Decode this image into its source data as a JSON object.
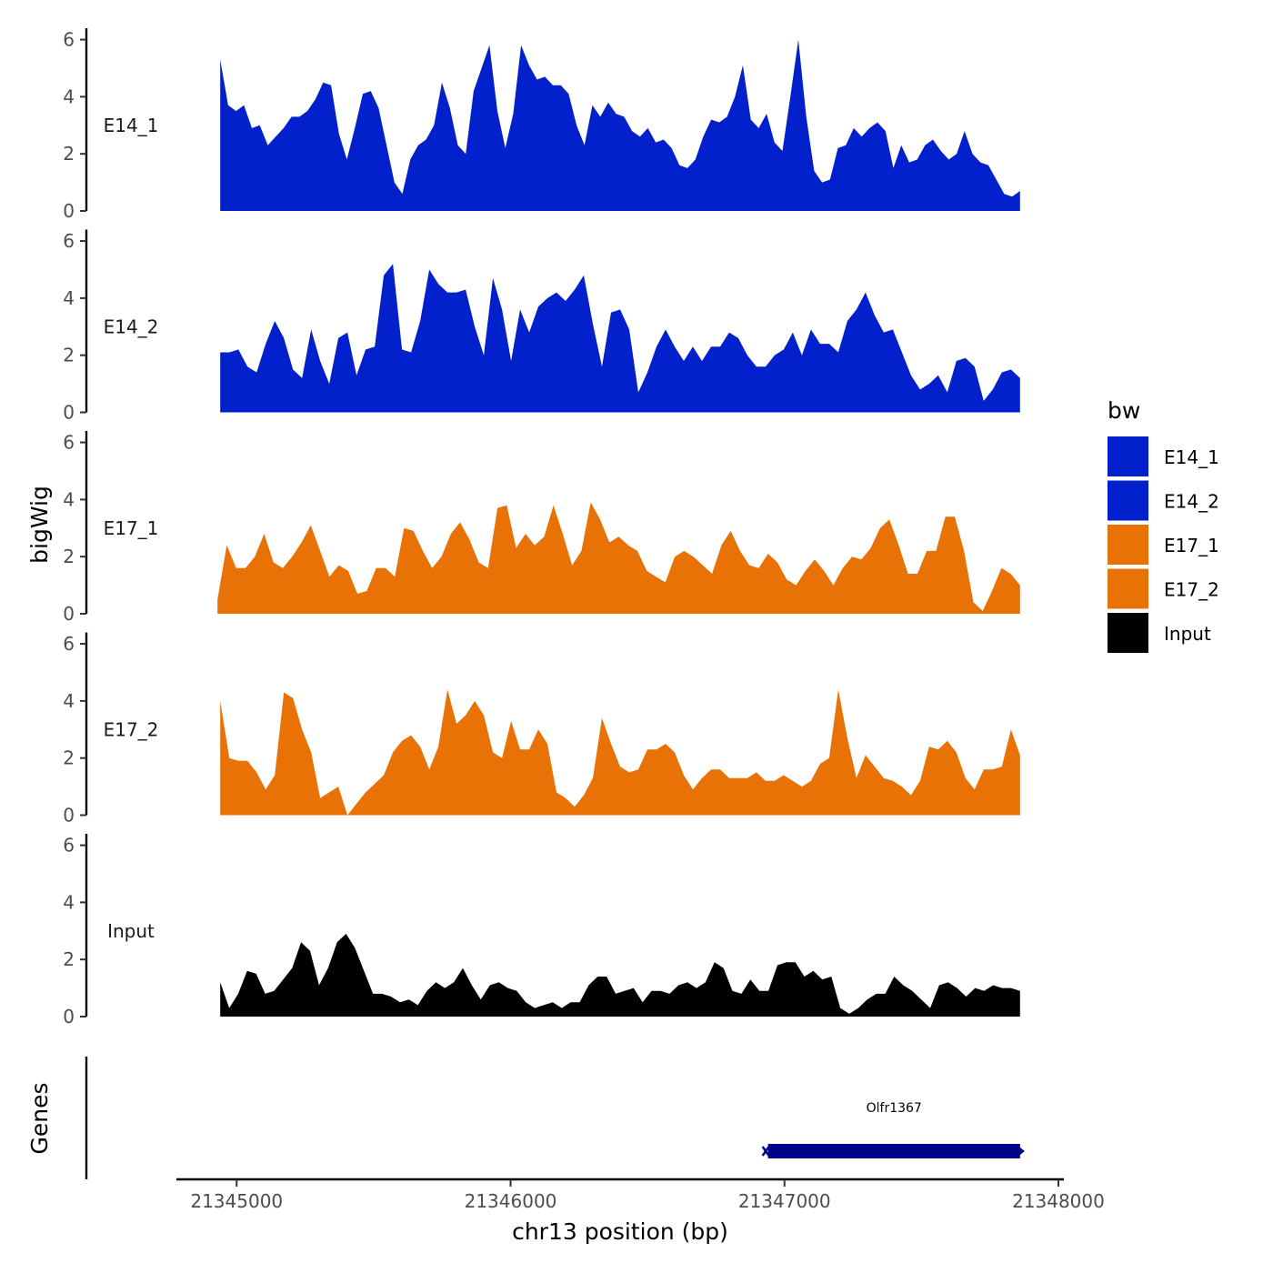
{
  "chart_data": {
    "type": "area",
    "ylabel": "bigWig",
    "xlabel": "chr13 position (bp)",
    "gene_track_label": "Genes",
    "ylim": [
      0,
      6.4
    ],
    "y_ticks": [
      0,
      2,
      4,
      6
    ],
    "xlim": [
      21344780,
      21348020
    ],
    "x_ticks": [
      21345000,
      21346000,
      21347000,
      21348000
    ],
    "x_tick_labels": [
      "21345000",
      "21346000",
      "21347000",
      "21348000"
    ],
    "legend": {
      "title": "bw",
      "entries": [
        {
          "label": "E14_1",
          "color": "#0220CC"
        },
        {
          "label": "E14_2",
          "color": "#0220CC"
        },
        {
          "label": "E17_1",
          "color": "#E87206"
        },
        {
          "label": "E17_2",
          "color": "#E87206"
        },
        {
          "label": "Input",
          "color": "#000000"
        }
      ]
    },
    "series": [
      {
        "name": "E14_1",
        "color": "#0220CC",
        "x_start": 21344940,
        "x_end": 21347860,
        "values": [
          5.3,
          3.7,
          3.5,
          3.7,
          2.9,
          3.0,
          2.3,
          2.6,
          2.9,
          3.3,
          3.3,
          3.5,
          3.9,
          4.5,
          4.4,
          2.7,
          1.8,
          2.9,
          4.1,
          4.2,
          3.6,
          2.3,
          1.0,
          0.6,
          1.8,
          2.3,
          2.5,
          3.0,
          4.5,
          3.6,
          2.3,
          2.0,
          4.2,
          5.0,
          5.8,
          3.5,
          2.2,
          3.4,
          5.8,
          5.1,
          4.6,
          4.7,
          4.4,
          4.4,
          4.1,
          3.0,
          2.3,
          3.7,
          3.3,
          3.8,
          3.4,
          3.3,
          2.8,
          2.6,
          2.9,
          2.4,
          2.5,
          2.2,
          1.6,
          1.5,
          1.8,
          2.6,
          3.2,
          3.1,
          3.3,
          4.0,
          5.1,
          3.2,
          2.9,
          3.4,
          2.4,
          2.1,
          4.0,
          6.0,
          3.3,
          1.4,
          1.0,
          1.1,
          2.2,
          2.3,
          2.9,
          2.6,
          2.9,
          3.1,
          2.8,
          1.5,
          2.3,
          1.7,
          1.8,
          2.3,
          2.5,
          2.1,
          1.8,
          2.0,
          2.8,
          2.0,
          1.7,
          1.6,
          1.1,
          0.6,
          0.5,
          0.7
        ]
      },
      {
        "name": "E14_2",
        "color": "#0220CC",
        "x_start": 21344940,
        "x_end": 21347860,
        "values": [
          2.1,
          2.1,
          2.2,
          1.6,
          1.4,
          2.4,
          3.2,
          2.6,
          1.5,
          1.2,
          2.9,
          1.8,
          1.0,
          2.6,
          2.8,
          1.3,
          2.2,
          2.3,
          4.8,
          5.2,
          2.2,
          2.1,
          3.2,
          5.0,
          4.5,
          4.2,
          4.2,
          4.3,
          3.0,
          2.0,
          4.7,
          3.6,
          1.8,
          3.6,
          2.8,
          3.7,
          4.0,
          4.2,
          3.9,
          4.3,
          4.8,
          3.1,
          1.6,
          3.5,
          3.6,
          2.9,
          0.7,
          1.4,
          2.3,
          2.9,
          2.3,
          1.8,
          2.3,
          1.8,
          2.3,
          2.3,
          2.8,
          2.6,
          2.0,
          1.6,
          1.6,
          2.0,
          2.2,
          2.8,
          2.0,
          2.9,
          2.4,
          2.4,
          2.1,
          3.2,
          3.6,
          4.2,
          3.4,
          2.8,
          2.9,
          2.1,
          1.3,
          0.8,
          1.0,
          1.3,
          0.7,
          1.8,
          1.9,
          1.6,
          0.4,
          0.8,
          1.4,
          1.5,
          1.2
        ]
      },
      {
        "name": "E17_1",
        "color": "#E87206",
        "x_start": 21344930,
        "x_end": 21347860,
        "values": [
          0.5,
          2.4,
          1.6,
          1.6,
          2.0,
          2.8,
          1.8,
          1.6,
          2.0,
          2.5,
          3.1,
          2.2,
          1.3,
          1.7,
          1.5,
          0.7,
          0.8,
          1.6,
          1.6,
          1.3,
          3.0,
          2.9,
          2.2,
          1.6,
          2.0,
          2.8,
          3.2,
          2.6,
          1.8,
          1.6,
          3.7,
          3.8,
          2.3,
          2.8,
          2.4,
          2.7,
          3.8,
          2.8,
          1.7,
          2.2,
          3.9,
          3.3,
          2.5,
          2.7,
          2.4,
          2.2,
          1.5,
          1.3,
          1.1,
          2.0,
          2.2,
          2.0,
          1.7,
          1.4,
          2.4,
          2.9,
          2.2,
          1.7,
          1.6,
          2.1,
          1.8,
          1.2,
          1.0,
          1.5,
          1.9,
          1.5,
          1.0,
          1.6,
          2.0,
          1.9,
          2.3,
          3.0,
          3.3,
          2.4,
          1.4,
          1.4,
          2.2,
          2.2,
          3.4,
          3.4,
          2.2,
          0.4,
          0.1,
          0.8,
          1.6,
          1.4,
          1.0
        ]
      },
      {
        "name": "E17_2",
        "color": "#E87206",
        "x_start": 21344940,
        "x_end": 21347860,
        "values": [
          4.0,
          2.0,
          1.9,
          1.9,
          1.5,
          0.9,
          1.4,
          4.3,
          4.1,
          3.0,
          2.2,
          0.6,
          0.8,
          1.0,
          0.0,
          0.4,
          0.8,
          1.1,
          1.4,
          2.2,
          2.6,
          2.8,
          2.4,
          1.6,
          2.4,
          4.4,
          3.2,
          3.5,
          4.0,
          3.5,
          2.2,
          2.0,
          3.3,
          2.3,
          2.3,
          3.0,
          2.5,
          0.8,
          0.6,
          0.3,
          0.7,
          1.3,
          3.4,
          2.5,
          1.7,
          1.5,
          1.6,
          2.3,
          2.3,
          2.5,
          2.2,
          1.4,
          0.9,
          1.3,
          1.6,
          1.6,
          1.3,
          1.3,
          1.3,
          1.5,
          1.2,
          1.2,
          1.4,
          1.2,
          1.0,
          1.2,
          1.8,
          2.0,
          4.4,
          2.7,
          1.3,
          2.1,
          1.7,
          1.3,
          1.2,
          1.0,
          0.7,
          1.2,
          2.4,
          2.3,
          2.6,
          2.2,
          1.3,
          0.9,
          1.6,
          1.6,
          1.7,
          3.0,
          2.1
        ]
      },
      {
        "name": "Input",
        "color": "#000000",
        "x_start": 21344940,
        "x_end": 21347860,
        "values": [
          1.2,
          0.3,
          0.8,
          1.6,
          1.5,
          0.8,
          0.9,
          1.3,
          1.7,
          2.6,
          2.3,
          1.1,
          1.7,
          2.6,
          2.9,
          2.4,
          1.6,
          0.8,
          0.8,
          0.7,
          0.5,
          0.6,
          0.4,
          0.9,
          1.2,
          1.0,
          1.2,
          1.7,
          1.1,
          0.6,
          1.1,
          1.2,
          1.0,
          0.9,
          0.5,
          0.3,
          0.4,
          0.5,
          0.3,
          0.5,
          0.5,
          1.1,
          1.4,
          1.4,
          0.8,
          0.9,
          1.0,
          0.5,
          0.9,
          0.9,
          0.8,
          1.1,
          1.2,
          1.0,
          1.2,
          1.9,
          1.7,
          0.9,
          0.8,
          1.3,
          0.9,
          0.9,
          1.8,
          1.9,
          1.9,
          1.4,
          1.6,
          1.3,
          1.4,
          0.3,
          0.1,
          0.3,
          0.6,
          0.8,
          0.8,
          1.4,
          1.1,
          0.9,
          0.6,
          0.3,
          1.1,
          1.2,
          1.0,
          0.7,
          1.0,
          0.9,
          1.1,
          1.0,
          1.0,
          0.9
        ]
      }
    ],
    "genes": [
      {
        "name": "Olfr1367",
        "start": 21346930,
        "end": 21347870,
        "strand": "-",
        "color": "#00008B"
      }
    ]
  }
}
